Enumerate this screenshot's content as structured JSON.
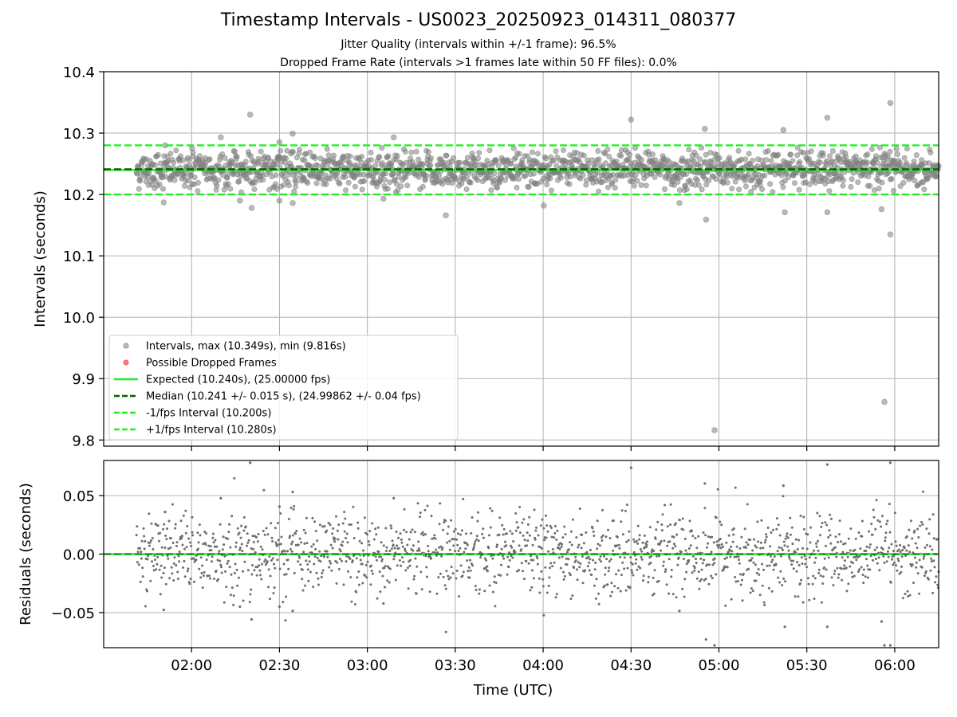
{
  "chart_data": [
    {
      "type": "scatter",
      "title": "Timestamp Intervals - US0023_20250923_014311_080377",
      "subtitle_1": "Jitter Quality (intervals within +/-1 frame): 96.5%",
      "subtitle_2": "Dropped Frame Rate (intervals >1 frames late within 50 FF files): 0.0%",
      "ylabel": "Intervals (seconds)",
      "ylim": [
        9.79,
        10.4
      ],
      "yticks": [
        "10.4",
        "10.3",
        "10.2",
        "10.1",
        "10.0",
        "9.9",
        "9.8"
      ],
      "ytick_values": [
        10.4,
        10.3,
        10.2,
        10.1,
        10.0,
        9.9,
        9.8
      ],
      "xlim_minutes": [
        90,
        375
      ],
      "grid": true,
      "legend_position": "lower-left",
      "legend": [
        "Intervals, max (10.349s), min (9.816s)",
        "Possible Dropped Frames",
        "Expected (10.240s), (25.00000 fps)",
        "Median (10.241 +/- 0.015 s), (24.99862 +/- 0.04 fps)",
        "-1/fps Interval (10.200s)",
        "+1/fps Interval (10.280s)"
      ],
      "lines": {
        "expected": 10.24,
        "median": 10.241,
        "minus_one_fps": 10.2,
        "plus_one_fps": 10.28
      },
      "series_summary": {
        "name": "Intervals",
        "x_start_minutes": 101.2,
        "x_end_minutes": 375,
        "count": 1600,
        "center": 10.24,
        "spread": 0.015
      },
      "outliers": [
        {
          "x": 110.5,
          "y": 10.187
        },
        {
          "x": 111.0,
          "y": 10.28
        },
        {
          "x": 120.2,
          "y": 10.275
        },
        {
          "x": 130.0,
          "y": 10.293
        },
        {
          "x": 136.5,
          "y": 10.19
        },
        {
          "x": 140.0,
          "y": 10.33
        },
        {
          "x": 140.5,
          "y": 10.178
        },
        {
          "x": 150.0,
          "y": 10.285
        },
        {
          "x": 150.0,
          "y": 10.19
        },
        {
          "x": 154.5,
          "y": 10.299
        },
        {
          "x": 154.5,
          "y": 10.186
        },
        {
          "x": 185.5,
          "y": 10.193
        },
        {
          "x": 189.0,
          "y": 10.293
        },
        {
          "x": 206.8,
          "y": 10.166
        },
        {
          "x": 240.2,
          "y": 10.182
        },
        {
          "x": 270.0,
          "y": 10.322
        },
        {
          "x": 286.5,
          "y": 10.186
        },
        {
          "x": 295.2,
          "y": 10.307
        },
        {
          "x": 295.6,
          "y": 10.159
        },
        {
          "x": 298.5,
          "y": 9.816
        },
        {
          "x": 322.0,
          "y": 10.305
        },
        {
          "x": 322.5,
          "y": 10.171
        },
        {
          "x": 337.0,
          "y": 10.325
        },
        {
          "x": 337.0,
          "y": 10.171
        },
        {
          "x": 355.5,
          "y": 10.176
        },
        {
          "x": 356.5,
          "y": 9.862
        },
        {
          "x": 358.5,
          "y": 10.349
        },
        {
          "x": 358.5,
          "y": 10.135
        }
      ]
    },
    {
      "type": "scatter",
      "ylabel": "Residuals (seconds)",
      "xlabel": "Time (UTC)",
      "ylim": [
        -0.08,
        0.08
      ],
      "yticks": [
        "0.05",
        "0.00",
        "−0.05"
      ],
      "ytick_values": [
        0.05,
        0.0,
        -0.05
      ],
      "xticks": [
        "02:00",
        "02:30",
        "03:00",
        "03:30",
        "04:00",
        "04:30",
        "05:00",
        "05:30",
        "06:00"
      ],
      "xtick_minutes": [
        120,
        150,
        180,
        210,
        240,
        270,
        300,
        330,
        360
      ],
      "xlim_minutes": [
        90,
        375
      ],
      "zero_line": 0.0,
      "grid": true,
      "series_summary": {
        "name": "Residuals",
        "x_start_minutes": 101.2,
        "x_end_minutes": 375,
        "count": 1600,
        "spread": 0.015
      }
    }
  ],
  "colors": {
    "points": "#808080",
    "expected": "#22ee22",
    "median": "#006400",
    "fps_bounds": "#22ee22",
    "dropped": "#ff5555",
    "grid": "#b0b0b0"
  }
}
